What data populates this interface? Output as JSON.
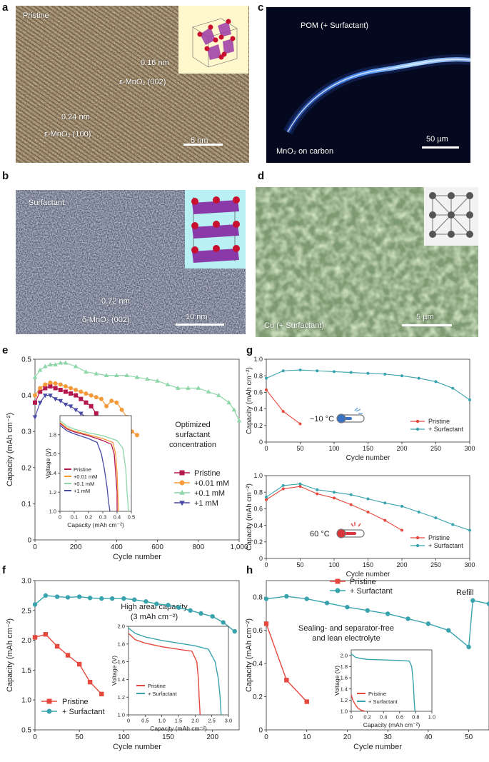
{
  "panels": {
    "a": {
      "letter": "a",
      "label": "Pristine",
      "dspace1": "0.16 nm",
      "phase1": "ε-MnO₂ (002)",
      "dspace2": "0.24 nm",
      "phase2": "ε-MnO₂ (100)",
      "scale": "5 nm"
    },
    "b": {
      "letter": "b",
      "label": "Surfactant",
      "dspace": "0.72 nm",
      "phase": "δ-MnO₂ (002)",
      "scale": "10 nm"
    },
    "c": {
      "letter": "c",
      "label": "POM (+ Surfactant)",
      "bottom_label": "MnO₂ on carbon",
      "scale": "50 µm"
    },
    "d": {
      "letter": "d",
      "label": "Cu (+ Surfactant)",
      "scale": "5 µm"
    },
    "e": {
      "letter": "e",
      "annotation": "Optimized surfactant concentration"
    },
    "f": {
      "letter": "f",
      "annotation": "High areal capacity (3 mAh cm⁻²)"
    },
    "g": {
      "letter": "g",
      "temp_top": "−10 °C",
      "temp_bottom": "60 °C"
    },
    "h": {
      "letter": "h",
      "annotation": "Sealing- and separator-free and lean electrolyte",
      "refill": "Refill"
    }
  },
  "colors": {
    "pristine_red": "#b5174f",
    "orange": "#f59a3a",
    "mint": "#8fd6a8",
    "purple": "#4a4aa8",
    "red": "#e5483c",
    "teal": "#39a3ad"
  },
  "chart_data": [
    {
      "id": "e",
      "type": "line",
      "xlabel": "Cycle number",
      "ylabel": "Capacity (mAh cm⁻²)",
      "xlim": [
        0,
        1000
      ],
      "ylim": [
        0,
        0.5
      ],
      "xticks": [
        0,
        200,
        400,
        600,
        800,
        1000
      ],
      "xticklabels": [
        "0",
        "200",
        "400",
        "600",
        "800",
        "1,000"
      ],
      "yticks": [
        0,
        0.1,
        0.2,
        0.3,
        0.4,
        0.5
      ],
      "yticklabels": [
        "0",
        "0.1",
        "0.2",
        "0.3",
        "0.4",
        "0.5"
      ],
      "legend": [
        "Pristine",
        "+0.01 mM",
        "+0.1 mM",
        "+1 mM"
      ],
      "legend_position": "right",
      "series": [
        {
          "name": "Pristine",
          "marker": "square",
          "x": [
            0,
            25,
            50,
            75,
            100,
            125,
            150,
            175,
            200,
            225,
            250,
            275,
            300,
            325,
            350
          ],
          "y": [
            0.38,
            0.41,
            0.42,
            0.425,
            0.42,
            0.415,
            0.41,
            0.405,
            0.4,
            0.39,
            0.38,
            0.37,
            0.35,
            0.32,
            0.29
          ]
        },
        {
          "name": "+0.01 mM",
          "marker": "circle",
          "x": [
            0,
            25,
            50,
            75,
            100,
            125,
            150,
            175,
            200,
            225,
            250,
            275,
            300,
            325,
            350,
            375,
            400,
            425,
            450,
            475,
            500
          ],
          "y": [
            0.4,
            0.42,
            0.43,
            0.435,
            0.433,
            0.43,
            0.425,
            0.42,
            0.415,
            0.41,
            0.405,
            0.4,
            0.395,
            0.39,
            0.37,
            0.385,
            0.38,
            0.36,
            0.34,
            0.3,
            0.29
          ]
        },
        {
          "name": "+0.1 mM",
          "marker": "triangle",
          "x": [
            0,
            25,
            50,
            75,
            100,
            125,
            150,
            200,
            250,
            300,
            350,
            400,
            450,
            500,
            550,
            600,
            650,
            700,
            750,
            800,
            850,
            900,
            950,
            975,
            1000
          ],
          "y": [
            0.45,
            0.47,
            0.48,
            0.485,
            0.485,
            0.49,
            0.49,
            0.48,
            0.465,
            0.46,
            0.455,
            0.455,
            0.455,
            0.45,
            0.445,
            0.44,
            0.43,
            0.42,
            0.42,
            0.42,
            0.41,
            0.4,
            0.38,
            0.36,
            0.33
          ]
        },
        {
          "name": "+1 mM",
          "marker": "triangle-down",
          "x": [
            0,
            25,
            50,
            75,
            100,
            125,
            150,
            175,
            200,
            225,
            250,
            275,
            300,
            325,
            350
          ],
          "y": [
            0.34,
            0.38,
            0.4,
            0.4,
            0.39,
            0.385,
            0.375,
            0.37,
            0.36,
            0.35,
            0.34,
            0.32,
            0.3,
            0.28,
            0.26
          ]
        }
      ],
      "inset": {
        "type": "line",
        "xlabel": "Capacity (mAh cm⁻²)",
        "ylabel": "Voltage (V)",
        "xlim": [
          0,
          0.5
        ],
        "ylim": [
          1.0,
          2.0
        ],
        "xticks": [
          0,
          0.1,
          0.2,
          0.3,
          0.4,
          0.5
        ],
        "xticklabels": [
          "0",
          "0.1",
          "0.2",
          "0.3",
          "0.4",
          "0.5"
        ],
        "yticks": [
          1.0,
          1.2,
          1.4,
          1.6,
          1.8
        ],
        "yticklabels": [
          "1.0",
          "1.2",
          "1.4",
          "1.6",
          "1.8"
        ],
        "legend": [
          "Pristine",
          "+0.01 mM",
          "+0.1 mM",
          "+1 mM"
        ],
        "series": [
          {
            "name": "Pristine",
            "x": [
              0,
              0.05,
              0.1,
              0.2,
              0.3,
              0.36,
              0.38,
              0.39,
              0.4,
              0.4
            ],
            "y": [
              1.92,
              1.86,
              1.83,
              1.79,
              1.74,
              1.7,
              1.6,
              1.4,
              1.2,
              1.0
            ]
          },
          {
            "name": "+0.01 mM",
            "x": [
              0,
              0.05,
              0.1,
              0.2,
              0.3,
              0.37,
              0.39,
              0.4,
              0.405,
              0.41
            ],
            "y": [
              1.93,
              1.87,
              1.84,
              1.8,
              1.76,
              1.72,
              1.6,
              1.4,
              1.2,
              1.0
            ]
          },
          {
            "name": "+0.1 mM",
            "x": [
              0,
              0.05,
              0.1,
              0.2,
              0.3,
              0.4,
              0.44,
              0.46,
              0.47,
              0.48
            ],
            "y": [
              1.95,
              1.89,
              1.86,
              1.82,
              1.79,
              1.74,
              1.66,
              1.45,
              1.2,
              1.0
            ]
          },
          {
            "name": "+1 mM",
            "x": [
              0,
              0.05,
              0.1,
              0.2,
              0.26,
              0.29,
              0.31,
              0.33,
              0.34,
              0.35
            ],
            "y": [
              1.9,
              1.84,
              1.81,
              1.76,
              1.72,
              1.6,
              1.45,
              1.25,
              1.1,
              1.0
            ]
          }
        ]
      }
    },
    {
      "id": "g_top",
      "type": "line",
      "xlabel": "Cycle number",
      "ylabel": "Capacity (mAh cm⁻²)",
      "xlim": [
        0,
        300
      ],
      "ylim": [
        0,
        1.0
      ],
      "xticks": [
        0,
        50,
        100,
        150,
        200,
        250,
        300
      ],
      "xticklabels": [
        "0",
        "50",
        "100",
        "150",
        "200",
        "250",
        "300"
      ],
      "yticks": [
        0,
        0.2,
        0.4,
        0.6,
        0.8,
        1.0
      ],
      "yticklabels": [
        "0",
        "0.2",
        "0.4",
        "0.6",
        "0.8",
        "1.0"
      ],
      "legend": [
        "Pristine",
        "+ Surfactant"
      ],
      "legend_position": "lower right",
      "series": [
        {
          "name": "Pristine",
          "x": [
            0,
            25,
            50
          ],
          "y": [
            0.63,
            0.37,
            0.22
          ]
        },
        {
          "name": "+ Surfactant",
          "x": [
            0,
            25,
            50,
            75,
            100,
            125,
            150,
            175,
            200,
            225,
            250,
            275,
            300
          ],
          "y": [
            0.77,
            0.86,
            0.87,
            0.86,
            0.85,
            0.84,
            0.83,
            0.82,
            0.8,
            0.77,
            0.73,
            0.65,
            0.51
          ]
        }
      ]
    },
    {
      "id": "g_bottom",
      "type": "line",
      "xlabel": "Cycle number",
      "ylabel": "Capacity (mAh cm⁻²)",
      "xlim": [
        0,
        300
      ],
      "ylim": [
        0,
        1.0
      ],
      "xticks": [
        0,
        50,
        100,
        150,
        200,
        250,
        300
      ],
      "xticklabels": [
        "0",
        "50",
        "100",
        "150",
        "200",
        "250",
        "300"
      ],
      "yticks": [
        0,
        0.2,
        0.4,
        0.6,
        0.8,
        1.0
      ],
      "yticklabels": [
        "0",
        "0.2",
        "0.4",
        "0.6",
        "0.8",
        "1.0"
      ],
      "legend": [
        "Pristine",
        "+ Surfactant"
      ],
      "legend_position": "lower right",
      "series": [
        {
          "name": "Pristine",
          "x": [
            0,
            25,
            50,
            75,
            100,
            125,
            150,
            175,
            200
          ],
          "y": [
            0.71,
            0.84,
            0.87,
            0.78,
            0.73,
            0.65,
            0.56,
            0.46,
            0.34
          ]
        },
        {
          "name": "+ Surfactant",
          "x": [
            0,
            25,
            50,
            75,
            100,
            125,
            150,
            175,
            200,
            225,
            250,
            275,
            300
          ],
          "y": [
            0.74,
            0.88,
            0.9,
            0.83,
            0.8,
            0.77,
            0.72,
            0.67,
            0.63,
            0.56,
            0.49,
            0.41,
            0.34
          ]
        }
      ]
    },
    {
      "id": "f",
      "type": "line",
      "xlabel": "Cycle number",
      "ylabel": "Capacity (mAh cm⁻²)",
      "xlim": [
        0,
        230
      ],
      "ylim": [
        0.5,
        3.0
      ],
      "xticks": [
        0,
        50,
        100,
        150,
        200
      ],
      "xticklabels": [
        "0",
        "50",
        "100",
        "150",
        "200"
      ],
      "yticks": [
        0.5,
        1.0,
        1.5,
        2.0,
        2.5,
        3.0
      ],
      "yticklabels": [
        "0.5",
        "1.0",
        "1.5",
        "2.0",
        "2.5",
        "3.0"
      ],
      "legend": [
        "Pristine",
        "+ Surfactant"
      ],
      "legend_position": "lower left",
      "series": [
        {
          "name": "Pristine",
          "x": [
            0,
            12,
            25,
            37,
            50,
            62,
            75
          ],
          "y": [
            2.05,
            2.1,
            1.9,
            1.75,
            1.6,
            1.3,
            1.1
          ]
        },
        {
          "name": "+ Surfactant",
          "x": [
            0,
            12,
            25,
            37,
            50,
            62,
            75,
            87,
            100,
            112,
            125,
            137,
            150,
            162,
            175,
            187,
            200,
            212,
            225
          ],
          "y": [
            2.6,
            2.75,
            2.73,
            2.72,
            2.73,
            2.71,
            2.7,
            2.7,
            2.7,
            2.68,
            2.65,
            2.61,
            2.59,
            2.55,
            2.5,
            2.45,
            2.4,
            2.3,
            2.15
          ]
        }
      ],
      "inset": {
        "type": "line",
        "xlabel": "Capacity (mAh cm⁻²)",
        "ylabel": "Voltage (V)",
        "xlim": [
          0,
          3.0
        ],
        "ylim": [
          1.0,
          2.0
        ],
        "xticks": [
          0,
          0.5,
          1.0,
          1.5,
          2.0,
          2.5,
          3.0
        ],
        "xticklabels": [
          "0",
          "0.5",
          "1.0",
          "1.5",
          "2.0",
          "2.5",
          "3.0"
        ],
        "yticks": [
          1.0,
          1.2,
          1.4,
          1.6,
          1.8,
          2.0
        ],
        "yticklabels": [
          "1.0",
          "1.2",
          "1.4",
          "1.6",
          "1.8",
          "2.0"
        ],
        "legend": [
          "Pristine",
          "+ Surfactant"
        ],
        "series": [
          {
            "name": "Pristine",
            "x": [
              0,
              0.2,
              0.5,
              1.0,
              1.5,
              1.9,
              2.05,
              2.1,
              2.12,
              2.15
            ],
            "y": [
              1.92,
              1.85,
              1.81,
              1.77,
              1.74,
              1.72,
              1.6,
              1.4,
              1.2,
              1.0
            ]
          },
          {
            "name": "+ Surfactant",
            "x": [
              0,
              0.2,
              0.5,
              1.0,
              1.5,
              2.0,
              2.4,
              2.6,
              2.7,
              2.75,
              2.78
            ],
            "y": [
              1.98,
              1.92,
              1.88,
              1.84,
              1.81,
              1.78,
              1.74,
              1.6,
              1.4,
              1.2,
              1.0
            ]
          }
        ]
      }
    },
    {
      "id": "h",
      "type": "line",
      "xlabel": "Cycle number",
      "ylabel": "Capacity (mAh cm⁻²)",
      "xlim": [
        0,
        55
      ],
      "ylim": [
        0,
        0.9
      ],
      "xticks": [
        0,
        10,
        20,
        30,
        40,
        50
      ],
      "xticklabels": [
        "0",
        "10",
        "20",
        "30",
        "40",
        "50"
      ],
      "yticks": [
        0,
        0.2,
        0.4,
        0.6,
        0.8
      ],
      "yticklabels": [
        "0",
        "0.2",
        "0.4",
        "0.6",
        "0.8"
      ],
      "legend": [
        "Pristine",
        "+ Surfactant"
      ],
      "legend_position": "top",
      "series": [
        {
          "name": "Pristine",
          "x": [
            0,
            5,
            10
          ],
          "y": [
            0.64,
            0.3,
            0.17
          ]
        },
        {
          "name": "+ Surfactant",
          "x": [
            0,
            5,
            10,
            15,
            20,
            25,
            30,
            35,
            40,
            45,
            50,
            51,
            55
          ],
          "y": [
            0.79,
            0.805,
            0.79,
            0.765,
            0.74,
            0.72,
            0.7,
            0.67,
            0.64,
            0.6,
            0.5,
            0.78,
            0.76
          ]
        }
      ],
      "inset": {
        "type": "line",
        "xlabel": "Capacity (mAh cm⁻²)",
        "ylabel": "Voltage (V)",
        "xlim": [
          0,
          1.0
        ],
        "ylim": [
          1.0,
          2.1
        ],
        "xticks": [
          0,
          0.2,
          0.4,
          0.6,
          0.8,
          1.0
        ],
        "xticklabels": [
          "0",
          "0.2",
          "0.4",
          "0.6",
          "0.8",
          "1.0"
        ],
        "yticks": [
          1.0,
          1.2,
          1.4,
          1.6,
          1.8,
          2.0
        ],
        "yticklabels": [
          "1.0",
          "1.2",
          "1.4",
          "1.6",
          "1.8",
          "2.0"
        ],
        "legend": [
          "Pristine",
          "+ Surfactant"
        ],
        "series": [
          {
            "name": "Pristine",
            "x": [
              0,
              0.02,
              0.05,
              0.08,
              0.12,
              0.15,
              0.17
            ],
            "y": [
              1.3,
              1.2,
              1.12,
              1.06,
              1.02,
              1.01,
              1.0
            ]
          },
          {
            "name": "+ Surfactant",
            "x": [
              0,
              0.05,
              0.1,
              0.2,
              0.4,
              0.6,
              0.72,
              0.75,
              0.77,
              0.78,
              0.79
            ],
            "y": [
              2.03,
              1.97,
              1.95,
              1.93,
              1.92,
              1.91,
              1.9,
              1.8,
              1.5,
              1.2,
              1.0
            ]
          }
        ]
      }
    }
  ]
}
